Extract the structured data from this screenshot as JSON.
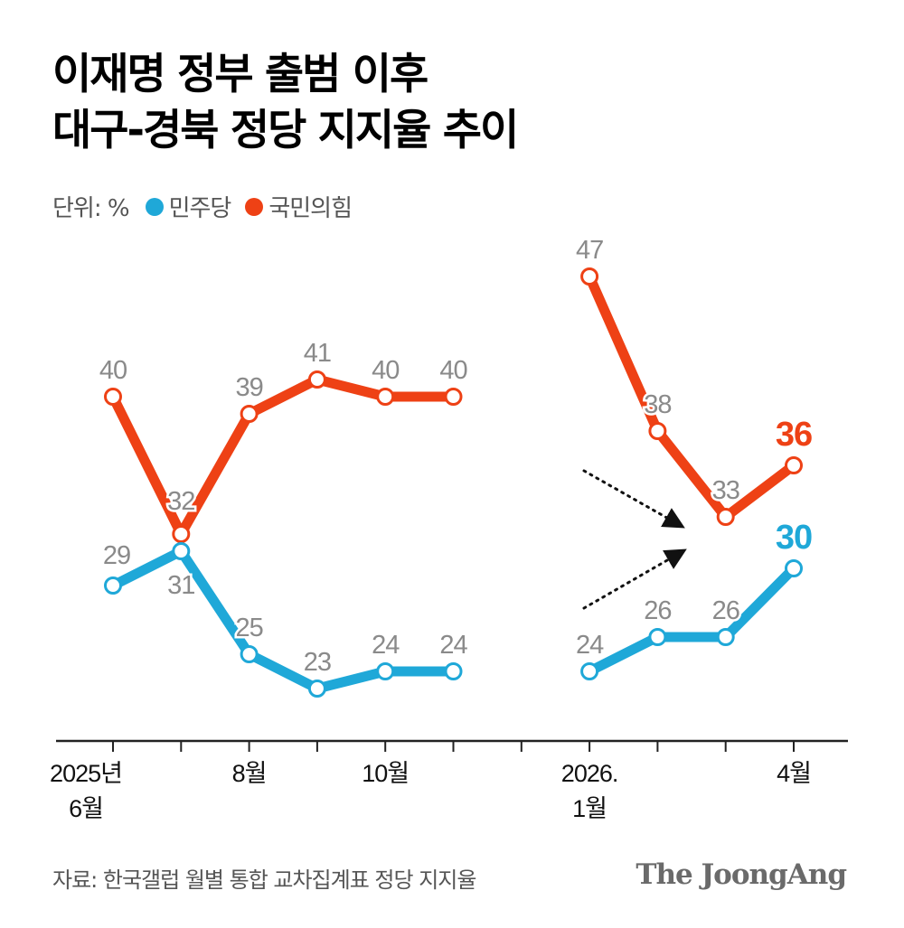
{
  "title": {
    "line1": "이재명 정부 출범 이후",
    "line2": "대구-경북 정당 지지율 추이"
  },
  "legend": {
    "unit": "단위: %",
    "items": [
      {
        "name": "민주당",
        "color": "#1fa8d8"
      },
      {
        "name": "국민의힘",
        "color": "#ee4115"
      }
    ]
  },
  "footer": {
    "source": "자료: 한국갤럽 월별 통합 교차집계표 정당 지지율",
    "brand": "The JoongAng"
  },
  "chart_data": {
    "type": "line",
    "unit": "%",
    "x_ticks": [
      "2025년 6월",
      "",
      "8월",
      "",
      "10월",
      "",
      "",
      "2026. 1월",
      "",
      "",
      "4월"
    ],
    "x_tick_lines": [
      [
        "2025년",
        "6월"
      ],
      [],
      [
        "8월"
      ],
      [],
      [
        "10월"
      ],
      [],
      [],
      [
        "2026.",
        "1월"
      ],
      [],
      [],
      [
        "4월"
      ]
    ],
    "series": [
      {
        "name": "국민의힘",
        "color": "#ee4115",
        "segments": [
          {
            "x": [
              0,
              1,
              2,
              3,
              4,
              5
            ],
            "values": [
              40,
              32,
              39,
              41,
              40,
              40
            ]
          },
          {
            "x": [
              7,
              8,
              9,
              10
            ],
            "values": [
              47,
              38,
              33,
              36
            ]
          }
        ]
      },
      {
        "name": "민주당",
        "color": "#1fa8d8",
        "segments": [
          {
            "x": [
              0,
              1,
              2,
              3,
              4,
              5
            ],
            "values": [
              29,
              31,
              25,
              23,
              24,
              24
            ]
          },
          {
            "x": [
              7,
              8,
              9,
              10
            ],
            "values": [
              24,
              26,
              26,
              30
            ]
          }
        ]
      }
    ],
    "data_label_color": "#8a8a8a",
    "highlight_last": true,
    "annotation": "dotted arrows converging toward the 2026 gap",
    "grid": false
  }
}
